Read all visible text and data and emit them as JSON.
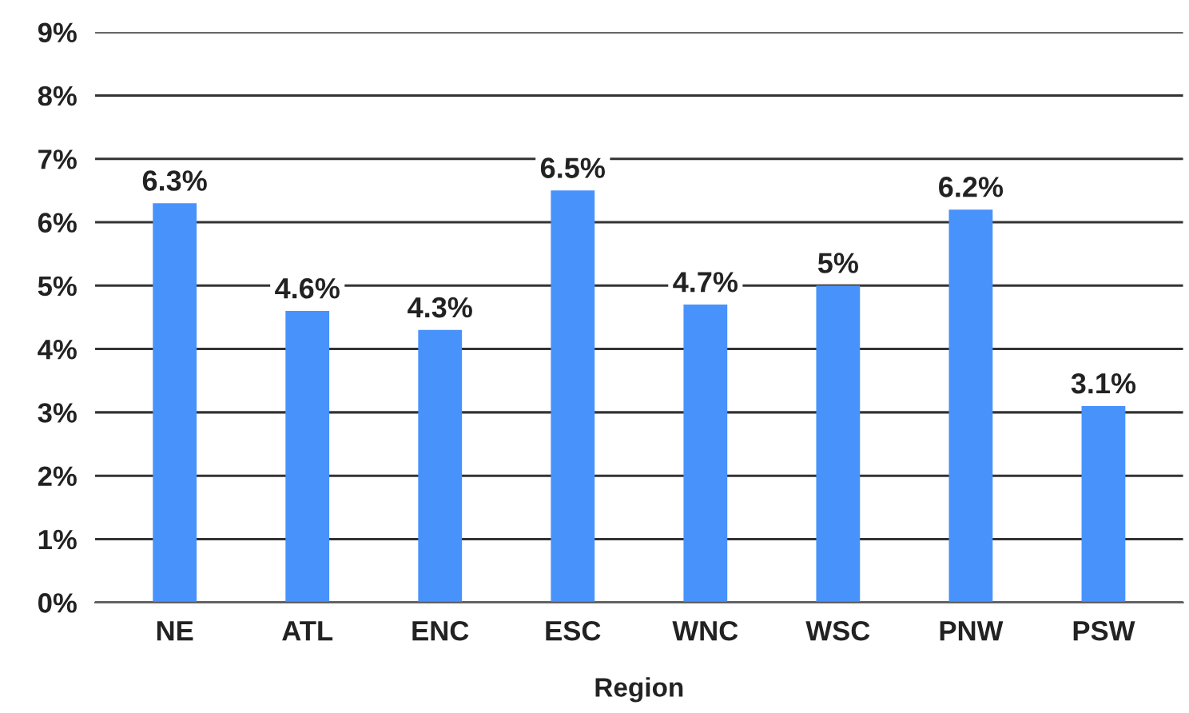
{
  "chart_data": {
    "type": "bar",
    "xlabel": "Region",
    "categories": [
      "NE",
      "ATL",
      "ENC",
      "ESC",
      "WNC",
      "WSC",
      "PNW",
      "PSW"
    ],
    "values": [
      6.3,
      4.6,
      4.3,
      6.5,
      4.7,
      5.0,
      6.2,
      3.1
    ],
    "value_labels": [
      "6.3%",
      "4.6%",
      "4.3%",
      "6.5%",
      "4.7%",
      "5%",
      "6.2%",
      "3.1%"
    ],
    "color": "#4892fc",
    "ylim": [
      0,
      9
    ],
    "yticks": [
      {
        "value": 0,
        "label": "0%"
      },
      {
        "value": 1,
        "label": "1%"
      },
      {
        "value": 2,
        "label": "2%"
      },
      {
        "value": 3,
        "label": "3%"
      },
      {
        "value": 4,
        "label": "4%"
      },
      {
        "value": 5,
        "label": "5%"
      },
      {
        "value": 6,
        "label": "6%"
      },
      {
        "value": 7,
        "label": "7%"
      },
      {
        "value": 8,
        "label": "8%"
      },
      {
        "value": 9,
        "label": "9%"
      }
    ],
    "grid": "y",
    "legend": false
  }
}
